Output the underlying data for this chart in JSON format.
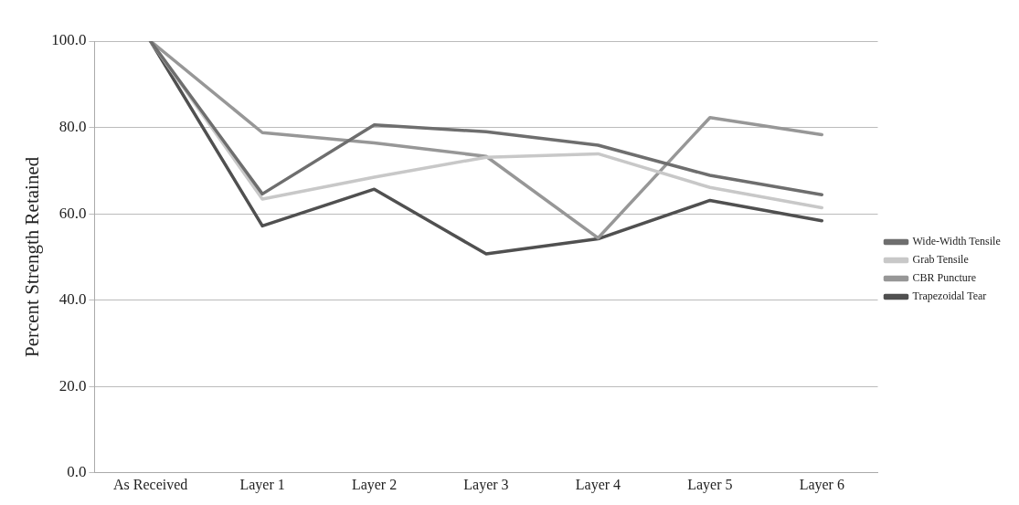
{
  "chart_data": {
    "type": "line",
    "ylabel": "Percent Strength Retained",
    "categories": [
      "As Received",
      "Layer 1",
      "Layer 2",
      "Layer 3",
      "Layer 4",
      "Layer 5",
      "Layer 6"
    ],
    "series": [
      {
        "name": "Wide-Width Tensile",
        "color": "#6e6e6e",
        "values": [
          100,
          64.6,
          80.6,
          79.0,
          75.9,
          68.9,
          64.4
        ]
      },
      {
        "name": "Grab Tensile",
        "color": "#c8c8c8",
        "values": [
          100,
          63.4,
          68.5,
          73.1,
          73.9,
          66.1,
          61.4
        ]
      },
      {
        "name": "CBR Puncture",
        "color": "#979797",
        "values": [
          100,
          78.8,
          76.4,
          73.3,
          54.4,
          82.3,
          78.3
        ]
      },
      {
        "name": "Trapezoidal Tear",
        "color": "#505050",
        "values": [
          100,
          57.2,
          65.7,
          50.7,
          54.2,
          63.1,
          58.4
        ]
      }
    ],
    "ylim": [
      0,
      100
    ],
    "yticks": [
      {
        "value": 0,
        "label": "0.0"
      },
      {
        "value": 20,
        "label": "20.0"
      },
      {
        "value": 40,
        "label": "40.0"
      },
      {
        "value": 60,
        "label": "60.0"
      },
      {
        "value": 80,
        "label": "80.0"
      },
      {
        "value": 100,
        "label": "100.0"
      }
    ],
    "grid": "y",
    "legend": "right",
    "marker": "none",
    "line_style": "solid"
  }
}
